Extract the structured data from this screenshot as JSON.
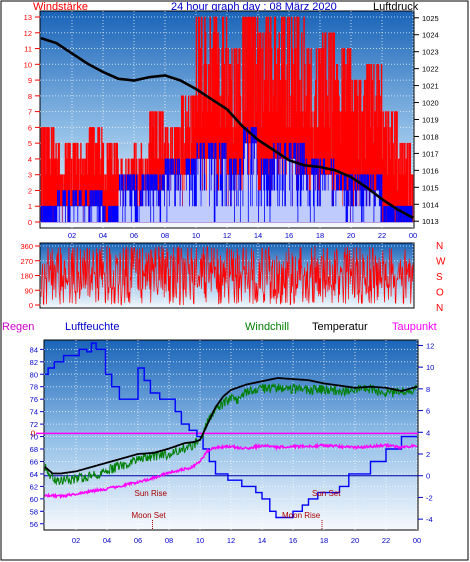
{
  "header": {
    "left_label": "Windstärke",
    "title": "24 hour graph day : 08 März 2020",
    "right_label": "Luftdruck"
  },
  "colors": {
    "panel_top": "#1e6fc0",
    "panel_bottom": "#f4f8fc",
    "axis_blue": "#0000cc",
    "red": "#ff0000",
    "blue": "#0000ff",
    "black": "#000000",
    "green": "#008000",
    "magenta": "#ff00ff"
  },
  "x_ticks": [
    "02",
    "04",
    "06",
    "08",
    "10",
    "12",
    "14",
    "16",
    "18",
    "20",
    "22",
    "00"
  ],
  "chart_data": [
    {
      "type": "bar",
      "name": "wind_pressure",
      "left_axis": {
        "label": "Windstärke",
        "ticks": [
          0,
          1,
          2,
          3,
          4,
          5,
          6,
          7,
          8,
          9,
          10,
          11,
          12,
          13
        ],
        "range": [
          0,
          13
        ]
      },
      "right_axis": {
        "label": "Luftdruck",
        "ticks": [
          1013,
          1014,
          1015,
          1016,
          1017,
          1018,
          1019,
          1020,
          1021,
          1022,
          1023,
          1024,
          1025
        ],
        "range": [
          1012.6,
          1025.4
        ]
      },
      "series": [
        {
          "name": "wind_gust",
          "color": "#ff0000",
          "hour_max": [
            6,
            5,
            5,
            6,
            5,
            4,
            5,
            7,
            6,
            8,
            13,
            13,
            11,
            13,
            13,
            13,
            13,
            11,
            12,
            11,
            9,
            10,
            7,
            5
          ]
        },
        {
          "name": "wind_avg",
          "color": "#0000ff",
          "hour_max": [
            1,
            2,
            2,
            2,
            1,
            3,
            3,
            3,
            4,
            4,
            5,
            5,
            4,
            6,
            4,
            5,
            5,
            4,
            4,
            3,
            3,
            3,
            1,
            1
          ]
        },
        {
          "name": "Luftdruck",
          "color": "#000000",
          "points": [
            [
              0,
              1023.8
            ],
            [
              1,
              1023.5
            ],
            [
              2,
              1022.9
            ],
            [
              3,
              1022.3
            ],
            [
              4,
              1021.8
            ],
            [
              5,
              1021.4
            ],
            [
              6,
              1021.3
            ],
            [
              7,
              1021.5
            ],
            [
              8,
              1021.6
            ],
            [
              9,
              1021.3
            ],
            [
              10,
              1020.8
            ],
            [
              11,
              1020.2
            ],
            [
              12,
              1019.6
            ],
            [
              13,
              1018.6
            ],
            [
              14,
              1017.8
            ],
            [
              15,
              1017.2
            ],
            [
              16,
              1016.6
            ],
            [
              17,
              1016.3
            ],
            [
              18,
              1016.2
            ],
            [
              19,
              1016
            ],
            [
              20,
              1015.6
            ],
            [
              21,
              1015
            ],
            [
              22,
              1014.3
            ],
            [
              23,
              1013.7
            ],
            [
              24,
              1013.2
            ]
          ]
        }
      ]
    },
    {
      "type": "line",
      "name": "wind_direction",
      "left_axis": {
        "ticks": [
          0,
          90,
          180,
          270,
          360
        ],
        "range": [
          0,
          360
        ]
      },
      "right_labels": [
        "N",
        "W",
        "S",
        "O",
        "N"
      ],
      "series": [
        {
          "name": "direction",
          "color": "#ff0000"
        }
      ]
    },
    {
      "type": "line",
      "name": "temperature_humidity",
      "labels": {
        "regen": "Regen",
        "luftfeuchte": "Luftfeuchte",
        "windchill": "Windchill",
        "temperatur": "Temperatur",
        "taupunkt": "Taupunkt"
      },
      "left_axis": {
        "ticks": [
          56,
          58,
          60,
          62,
          64,
          66,
          68,
          70,
          72,
          74,
          76,
          78,
          80,
          82,
          84
        ],
        "range": [
          55,
          85.5
        ]
      },
      "right_axis": {
        "ticks": [
          -4,
          -2,
          0,
          2,
          4,
          6,
          8,
          10,
          12
        ],
        "range": [
          -5,
          12.5
        ]
      },
      "rain_marker": {
        "label": "0",
        "value": 0
      },
      "annotations": [
        {
          "label": "Sun Rise",
          "hour": 7
        },
        {
          "label": "Moon Set",
          "hour": 7
        },
        {
          "label": "Moon Rise",
          "hour": 18
        },
        {
          "label": "Sun Set",
          "hour": 18
        }
      ],
      "series": [
        {
          "name": "Luftfeuchte",
          "color": "#0000ff",
          "points": [
            [
              0,
              80
            ],
            [
              0.2,
              80
            ],
            [
              0.2,
              81
            ],
            [
              0.6,
              81
            ],
            [
              0.6,
              82
            ],
            [
              1.2,
              82
            ],
            [
              1.2,
              83
            ],
            [
              2.2,
              83
            ],
            [
              2.2,
              84
            ],
            [
              2.7,
              84
            ],
            [
              2.7,
              83.6
            ],
            [
              3,
              83.6
            ],
            [
              3,
              85
            ],
            [
              3.3,
              85
            ],
            [
              3.3,
              84
            ],
            [
              3.9,
              84
            ],
            [
              3.9,
              80
            ],
            [
              4.3,
              80
            ],
            [
              4.3,
              78
            ],
            [
              4.8,
              78
            ],
            [
              4.8,
              76
            ],
            [
              6,
              76
            ],
            [
              6,
              81
            ],
            [
              6.4,
              81
            ],
            [
              6.4,
              79
            ],
            [
              6.8,
              79
            ],
            [
              6.8,
              77
            ],
            [
              7.4,
              77
            ],
            [
              7.4,
              76
            ],
            [
              8.4,
              76
            ],
            [
              8.4,
              74
            ],
            [
              8.8,
              74
            ],
            [
              8.8,
              72
            ],
            [
              9.3,
              72
            ],
            [
              9.3,
              71
            ],
            [
              9.8,
              71
            ],
            [
              9.8,
              70
            ],
            [
              10.2,
              70
            ],
            [
              10.2,
              68
            ],
            [
              10.6,
              68
            ],
            [
              10.6,
              66
            ],
            [
              11,
              66
            ],
            [
              11,
              64
            ],
            [
              11.8,
              64
            ],
            [
              11.8,
              63
            ],
            [
              12.7,
              63
            ],
            [
              12.7,
              62
            ],
            [
              13.6,
              62
            ],
            [
              13.6,
              61
            ],
            [
              14,
              61
            ],
            [
              14,
              60
            ],
            [
              14.5,
              60
            ],
            [
              14.5,
              58
            ],
            [
              14.9,
              58
            ],
            [
              14.9,
              57
            ],
            [
              16,
              57
            ],
            [
              16,
              58
            ],
            [
              16.6,
              58
            ],
            [
              16.6,
              59
            ],
            [
              17,
              59
            ],
            [
              17,
              60
            ],
            [
              17.6,
              60
            ],
            [
              17.6,
              61
            ],
            [
              19,
              61
            ],
            [
              19,
              62
            ],
            [
              19.6,
              62
            ],
            [
              19.6,
              64
            ],
            [
              21,
              64
            ],
            [
              21,
              66
            ],
            [
              22,
              66
            ],
            [
              22,
              68
            ],
            [
              23,
              68
            ],
            [
              23,
              70
            ],
            [
              24,
              70
            ]
          ]
        },
        {
          "name": "Windchill",
          "color": "#008000",
          "points": [
            [
              0,
              0.7
            ],
            [
              0.5,
              -0.3
            ],
            [
              1,
              -0.5
            ],
            [
              2,
              -0.3
            ],
            [
              3,
              0
            ],
            [
              4,
              0.5
            ],
            [
              5,
              0.9
            ],
            [
              6,
              1.5
            ],
            [
              7,
              1.8
            ],
            [
              8,
              2
            ],
            [
              9,
              2.6
            ],
            [
              9.5,
              2.8
            ],
            [
              10,
              3.2
            ],
            [
              10.5,
              5
            ],
            [
              11,
              6
            ],
            [
              12,
              7.2
            ],
            [
              12.5,
              6.9
            ],
            [
              13,
              7.7
            ],
            [
              14,
              8
            ],
            [
              15,
              8.1
            ],
            [
              16,
              8
            ],
            [
              17,
              7.9
            ],
            [
              18,
              7.9
            ],
            [
              19,
              7.8
            ],
            [
              20,
              7.9
            ],
            [
              21,
              8
            ],
            [
              22,
              7.6
            ],
            [
              23,
              7.7
            ],
            [
              24,
              8
            ]
          ]
        },
        {
          "name": "Temperatur",
          "color": "#000000",
          "points": [
            [
              0,
              0.8
            ],
            [
              0.5,
              0.2
            ],
            [
              1,
              0.2
            ],
            [
              2,
              0.4
            ],
            [
              3,
              0.8
            ],
            [
              4,
              1.2
            ],
            [
              5,
              1.6
            ],
            [
              6,
              2
            ],
            [
              7,
              2.1
            ],
            [
              8,
              2.5
            ],
            [
              9,
              3
            ],
            [
              9.6,
              3.1
            ],
            [
              10,
              3.3
            ],
            [
              10.5,
              4.8
            ],
            [
              11,
              6.3
            ],
            [
              11.5,
              7.3
            ],
            [
              12,
              7.9
            ],
            [
              13,
              8.4
            ],
            [
              14,
              8.7
            ],
            [
              15,
              9
            ],
            [
              16,
              8.9
            ],
            [
              17,
              8.8
            ],
            [
              18,
              8.5
            ],
            [
              19,
              8.3
            ],
            [
              20,
              8.1
            ],
            [
              21,
              8.2
            ],
            [
              22,
              8.1
            ],
            [
              23,
              7.8
            ],
            [
              24,
              8.2
            ]
          ]
        },
        {
          "name": "Taupunkt",
          "color": "#ff00ff",
          "points": [
            [
              0,
              -1.8
            ],
            [
              1,
              -1.9
            ],
            [
              2,
              -1.7
            ],
            [
              3,
              -1.4
            ],
            [
              4,
              -1.2
            ],
            [
              5,
              -0.9
            ],
            [
              6,
              -0.6
            ],
            [
              7,
              -0.2
            ],
            [
              8,
              0.3
            ],
            [
              9,
              0.6
            ],
            [
              9.5,
              0.8
            ],
            [
              10,
              1.3
            ],
            [
              10.5,
              2.3
            ],
            [
              11,
              2.6
            ],
            [
              12,
              2.7
            ],
            [
              13,
              2.5
            ],
            [
              14,
              2.8
            ],
            [
              15,
              2.6
            ],
            [
              16,
              2.7
            ],
            [
              17,
              2.7
            ],
            [
              18,
              2.8
            ],
            [
              19,
              2.7
            ],
            [
              20,
              2.6
            ],
            [
              21,
              2.7
            ],
            [
              22,
              2.8
            ],
            [
              23,
              2.6
            ],
            [
              24,
              2.8
            ]
          ]
        }
      ]
    }
  ]
}
